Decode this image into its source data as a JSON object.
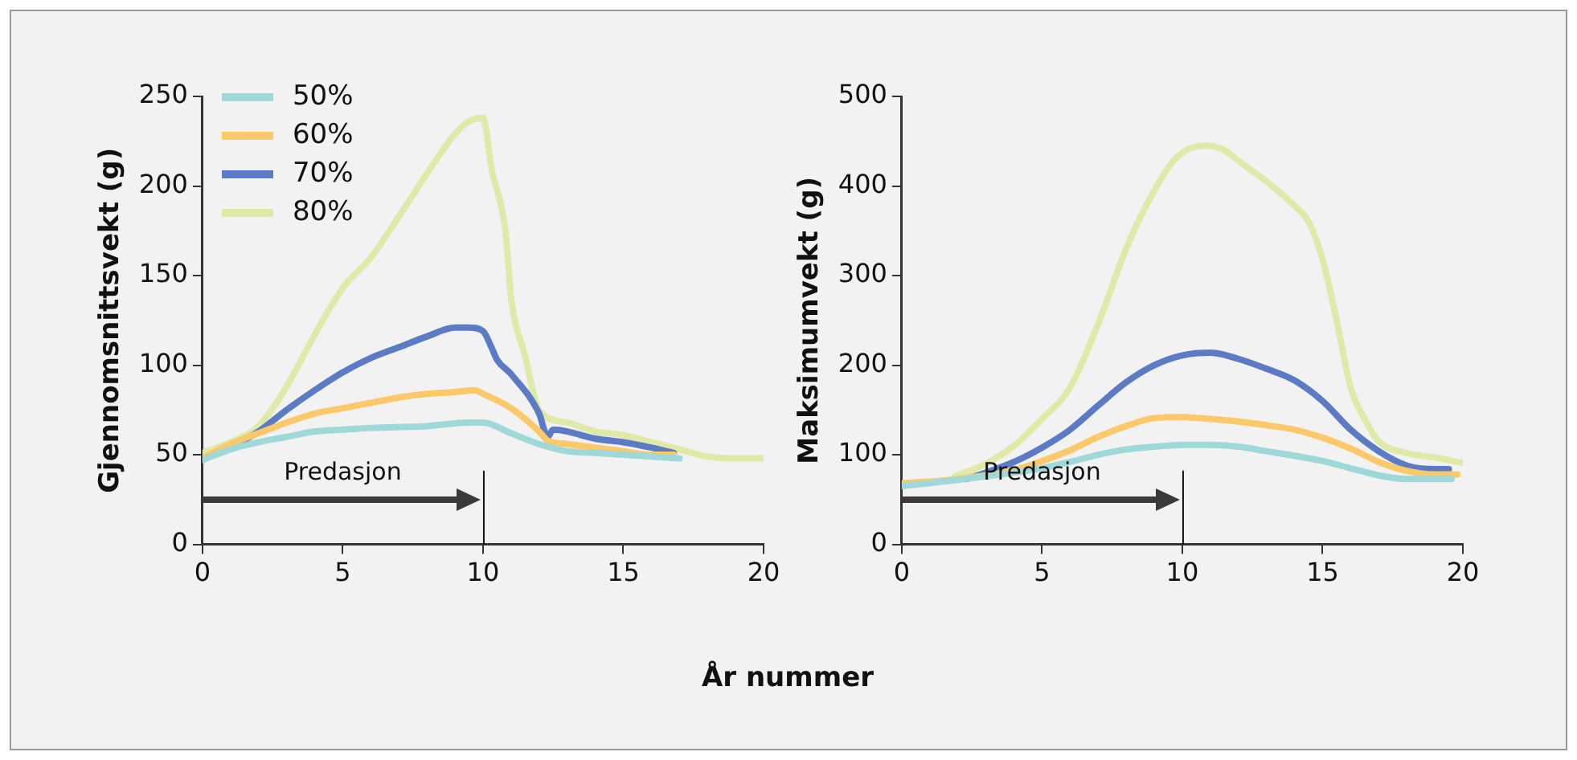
{
  "chart_data": [
    {
      "type": "line",
      "xlabel": "År nummer",
      "ylabel": "Gjennomsnittsvekt (g)",
      "xlim": [
        0,
        20
      ],
      "xticks": [
        0,
        5,
        10,
        15,
        20
      ],
      "ylim": [
        0,
        250
      ],
      "yticks": [
        0,
        50,
        100,
        150,
        200,
        250
      ],
      "grid": false,
      "legend": "top left",
      "marker": "none",
      "ref_lines": [
        {
          "axis": "x",
          "value": 10
        }
      ],
      "annotations": [
        "Predasjon"
      ],
      "series": [
        {
          "name": "50%",
          "color": "#9fd8d9",
          "x": [
            0,
            1,
            2,
            3,
            4,
            5,
            6,
            8,
            9.5,
            10,
            11,
            12,
            13,
            14,
            15,
            16,
            17
          ],
          "values": [
            47,
            53,
            57,
            60,
            63,
            64,
            65,
            66,
            68,
            68,
            62,
            56,
            52,
            51,
            50,
            49,
            48
          ]
        },
        {
          "name": "60%",
          "color": "#fbc96a",
          "x": [
            0,
            1,
            2,
            3,
            4,
            5,
            6,
            7,
            8,
            9,
            9.7,
            10,
            11,
            12,
            12.3,
            13,
            14,
            15,
            16,
            16.8
          ],
          "values": [
            48,
            56,
            62,
            68,
            73,
            76,
            79,
            82,
            84,
            85,
            86,
            84,
            76,
            63,
            58,
            56,
            54,
            52,
            50,
            50
          ]
        },
        {
          "name": "70%",
          "color": "#5b7cc4",
          "x": [
            0,
            1,
            2,
            3,
            4,
            5,
            6,
            7,
            8,
            9,
            9.5,
            10,
            10.3,
            10.5,
            11,
            12,
            12.3,
            12.5,
            13,
            14,
            15,
            16,
            16.8
          ],
          "values": [
            48,
            54,
            63,
            75,
            86,
            96,
            104,
            110,
            116,
            121,
            121,
            119,
            110,
            103,
            95,
            73,
            60,
            64,
            63,
            59,
            57,
            54,
            51
          ]
        },
        {
          "name": "80%",
          "color": "#dfeaa8",
          "x": [
            0,
            1,
            2,
            3,
            4,
            5,
            6,
            7,
            8,
            9,
            9.5,
            10,
            10.3,
            10.8,
            11,
            11.5,
            12,
            13,
            14,
            15,
            16,
            17,
            18,
            19,
            20
          ],
          "values": [
            51,
            57,
            66,
            88,
            117,
            143,
            160,
            183,
            207,
            229,
            236,
            238,
            210,
            175,
            138,
            105,
            75,
            68,
            63,
            61,
            57,
            53,
            49,
            48,
            48
          ]
        }
      ]
    },
    {
      "type": "line",
      "ylabel": "Maksimumvekt (g)",
      "xlim": [
        0,
        20
      ],
      "xticks": [
        0,
        5,
        10,
        15,
        20
      ],
      "ylim": [
        0,
        500
      ],
      "yticks": [
        0,
        100,
        200,
        300,
        400,
        500
      ],
      "grid": false,
      "marker": "none",
      "ref_lines": [
        {
          "axis": "x",
          "value": 10
        }
      ],
      "annotations": [
        "Predasjon"
      ],
      "series": [
        {
          "color": "#9fd8d9",
          "x": [
            0,
            2,
            4,
            5,
            6,
            7,
            8,
            9,
            10,
            11,
            12,
            13,
            14,
            15,
            16,
            17,
            18,
            19.6
          ],
          "values": [
            65,
            72,
            80,
            85,
            92,
            100,
            106,
            109,
            111,
            111,
            109,
            104,
            99,
            93,
            85,
            77,
            73,
            73
          ]
        },
        {
          "color": "#fbc96a",
          "x": [
            0,
            2,
            4,
            5,
            6,
            7,
            8,
            9,
            10,
            11,
            12,
            13,
            14,
            15,
            16,
            17,
            18,
            19,
            19.8
          ],
          "values": [
            68,
            73,
            83,
            93,
            105,
            120,
            132,
            141,
            142,
            140,
            137,
            133,
            128,
            119,
            107,
            92,
            82,
            78,
            78
          ]
        },
        {
          "color": "#5b7cc4",
          "x": [
            2.3,
            3,
            4,
            5,
            6,
            7,
            8,
            9,
            10,
            11,
            12,
            13,
            14,
            15,
            16,
            17,
            18,
            19,
            19.5
          ],
          "values": [
            73,
            80,
            92,
            108,
            128,
            155,
            181,
            200,
            211,
            214,
            207,
            196,
            183,
            160,
            128,
            104,
            88,
            84,
            84
          ]
        },
        {
          "color": "#dfeaa8",
          "x": [
            1.9,
            3,
            4,
            5,
            6,
            7,
            8,
            9,
            9.8,
            10.8,
            11.5,
            12,
            13,
            14,
            14.5,
            15,
            15.5,
            16,
            16.5,
            17,
            18,
            19,
            20
          ],
          "values": [
            76,
            90,
            110,
            140,
            175,
            246,
            330,
            395,
            432,
            445,
            440,
            428,
            405,
            378,
            360,
            318,
            250,
            175,
            140,
            115,
            102,
            97,
            91
          ]
        }
      ]
    }
  ]
}
